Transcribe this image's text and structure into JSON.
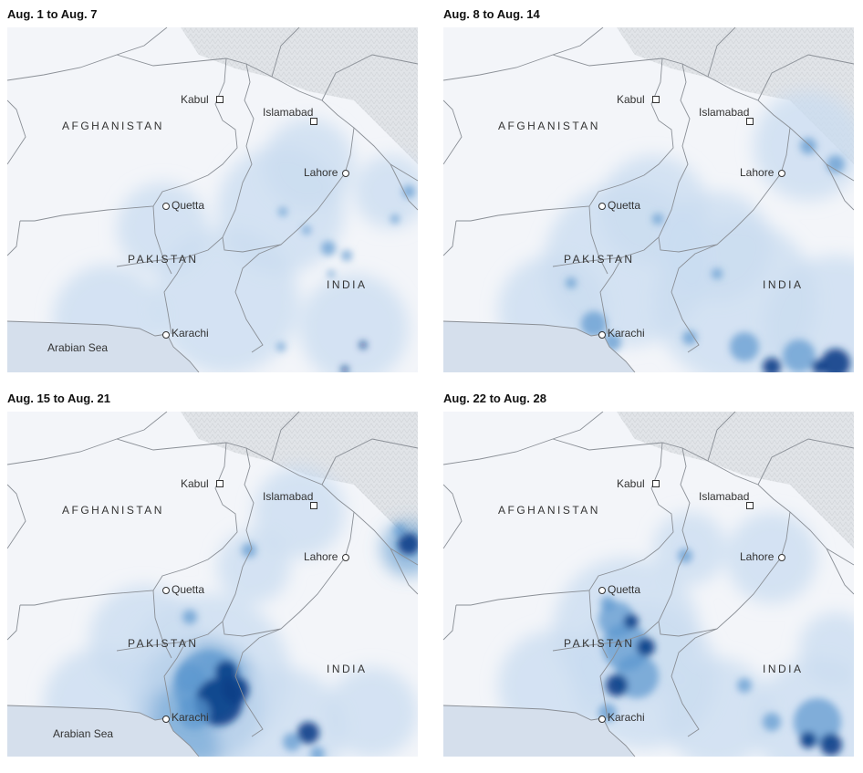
{
  "panels": [
    {
      "title": "Aug. 1 to Aug. 7",
      "intensity": "low"
    },
    {
      "title": "Aug. 8 to Aug. 14",
      "intensity": "moderate"
    },
    {
      "title": "Aug. 15 to Aug. 21",
      "intensity": "high"
    },
    {
      "title": "Aug. 22 to Aug. 28",
      "intensity": "moderate-high"
    }
  ],
  "labels": {
    "afghanistan": "AFGHANISTAN",
    "pakistan": "PAKISTAN",
    "india": "INDIA",
    "arabian_sea": "Arabian Sea",
    "kabul": "Kabul",
    "islamabad": "Islamabad",
    "lahore": "Lahore",
    "quetta": "Quetta",
    "karachi": "Karachi"
  },
  "colors": {
    "land": "#f3f5f9",
    "sea": "#d5dfec",
    "mountains": "#dfe2e6",
    "border": "#8a8f96",
    "rain_light": "#c9dcf0",
    "rain_mid": "#5b97cf",
    "rain_dark": "#0b3f88"
  }
}
